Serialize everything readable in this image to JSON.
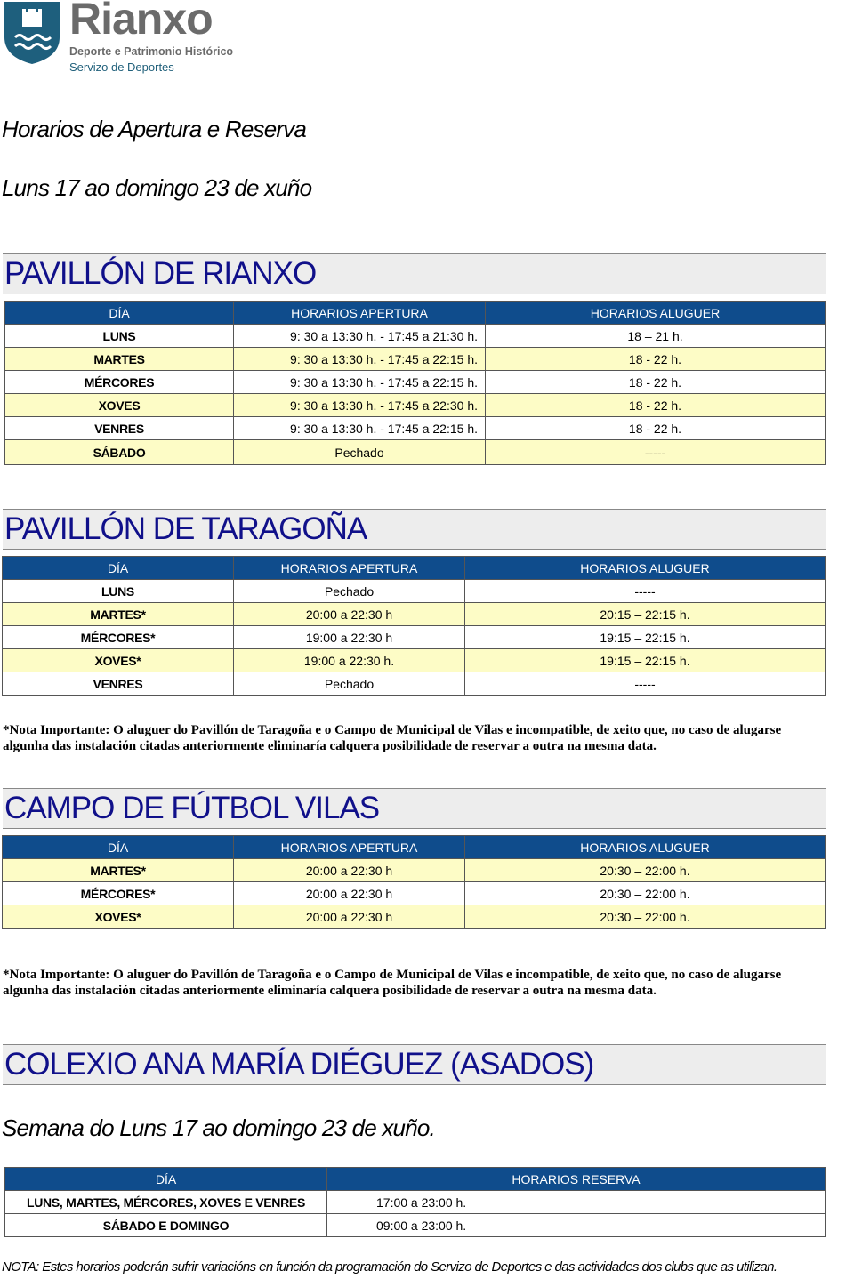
{
  "header": {
    "brand": "Rianxo",
    "subtitle": "Deporte e Patrimonio Histórico",
    "service": "Servizo de Deportes"
  },
  "title": "Horarios de Apertura e Reserva",
  "week": "Luns 17  ao domingo 23 de xuño",
  "sections": [
    {
      "name": "PAVILLÓN DE RIANXO",
      "headers": [
        "DÍA",
        "HORARIOS APERTURA",
        "HORARIOS ALUGUER"
      ],
      "rows": [
        [
          "LUNS",
          "9: 30 a 13:30 h. - 17:45  a 21:30 h.",
          "18 – 21 h."
        ],
        [
          "MARTES",
          "9: 30 a 13:30 h. - 17:45  a 22:15 h.",
          "18 - 22 h."
        ],
        [
          "MÉRCORES",
          "9: 30 a 13:30 h. - 17:45  a 22:15 h.",
          "18 - 22 h."
        ],
        [
          "XOVES",
          "9: 30 a 13:30 h. - 17:45  a 22:30 h.",
          "18 - 22 h."
        ],
        [
          "VENRES",
          "9: 30 a 13:30 h. - 17:45  a 22:15 h.",
          "18 - 22 h."
        ],
        [
          "SÁBADO",
          "Pechado",
          "-----"
        ]
      ]
    },
    {
      "name": "PAVILLÓN DE TARAGOÑA",
      "headers": [
        "DÍA",
        "HORARIOS APERTURA",
        "HORARIOS ALUGUER"
      ],
      "rows": [
        [
          "LUNS",
          "Pechado",
          "-----"
        ],
        [
          "MARTES*",
          "20:00 a 22:30 h",
          "20:15 – 22:15 h."
        ],
        [
          "MÉRCORES*",
          "19:00 a 22:30 h",
          "19:15 – 22:15 h."
        ],
        [
          "XOVES*",
          "19:00 a 22:30 h.",
          "19:15 – 22:15 h."
        ],
        [
          "VENRES",
          "Pechado",
          "-----"
        ]
      ]
    },
    {
      "name": "CAMPO DE FÚTBOL VILAS",
      "headers": [
        "DÍA",
        "HORARIOS APERTURA",
        "HORARIOS ALUGUER"
      ],
      "rows": [
        [
          "MARTES*",
          "20:00 a 22:30 h",
          "20:30 – 22:00 h."
        ],
        [
          "MÉRCORES*",
          "20:00 a 22:30 h",
          "20:30 – 22:00 h."
        ],
        [
          "XOVES*",
          "20:00 a 22:30 h",
          "20:30 – 22:00 h."
        ]
      ]
    },
    {
      "name": "COLEXIO ANA MARÍA DIÉGUEZ (ASADOS)",
      "week": "Semana do Luns 17 ao domingo 23 de xuño.",
      "headers": [
        "DÍA",
        "HORARIOS RESERVA"
      ],
      "rows": [
        [
          "LUNS, MARTES, MÉRCORES, XOVES E VENRES",
          "17:00 a 23:00 h."
        ],
        [
          "SÁBADO E DOMINGO",
          "09:00 a 23:00 h."
        ]
      ]
    }
  ],
  "note": "*Nota Importante: O aluguer do Pavillón de Taragoña e o Campo de Municipal de Vilas e incompatible, de xeito que, no caso de alugarse algunha das instalación citadas anteriormente eliminaría calquera posibilidade de reservar a outra na mesma data.",
  "final_note": "NOTA: Estes horarios poderán sufrir variacións en función da programación do Servizo de Deportes e das actividades dos clubs que as utilizan.",
  "colors": {
    "header_bg": "#0f4c8c",
    "title": "#10108a",
    "highlight_row": "#fdfcc6",
    "logo": "#1e5f7d"
  }
}
